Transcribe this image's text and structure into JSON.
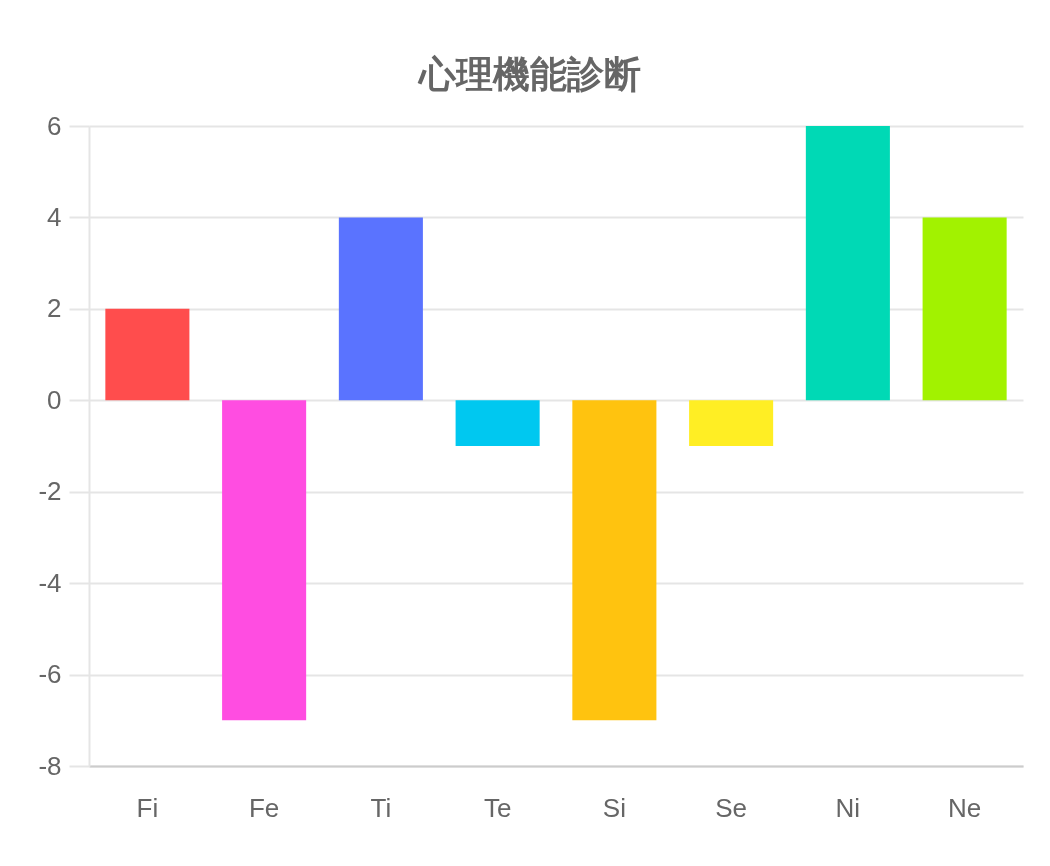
{
  "chart_data": {
    "type": "bar",
    "title": "心理機能診断",
    "categories": [
      "Fi",
      "Fe",
      "Ti",
      "Te",
      "Si",
      "Se",
      "Ni",
      "Ne"
    ],
    "values": [
      2,
      -7,
      4,
      -1,
      -7,
      -1,
      6,
      4
    ],
    "colors": [
      "#ff4d4d",
      "#ff4de1",
      "#5a73ff",
      "#00c8f0",
      "#ffc30f",
      "#ffee24",
      "#00d9b5",
      "#a2f200"
    ],
    "ylim": [
      -8,
      6
    ],
    "yticks": [
      -8,
      -6,
      -4,
      -2,
      0,
      2,
      4,
      6
    ],
    "grid": "y"
  }
}
